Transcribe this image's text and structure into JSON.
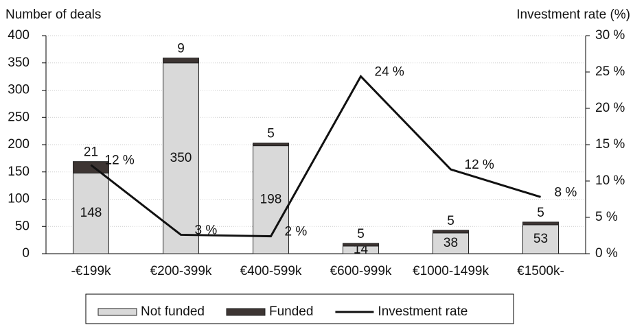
{
  "chart_data": {
    "type": "bar",
    "y_axis_label": "Number of deals",
    "y2_axis_label": "Investment rate (%)",
    "categories": [
      "-€199k",
      "€200-399k",
      "€400-599k",
      "€600-999k",
      "€1000-1499k",
      "€1500k-"
    ],
    "series": [
      {
        "name": "Not funded",
        "color": "#d9d9d9",
        "values": [
          148,
          350,
          198,
          14,
          38,
          53
        ]
      },
      {
        "name": "Funded",
        "color": "#3d3533",
        "values": [
          21,
          9,
          5,
          5,
          5,
          5
        ]
      },
      {
        "name": "Investment rate",
        "color": "#111111",
        "axis": "y2",
        "type": "line",
        "values": [
          12.2,
          2.6,
          2.4,
          24.4,
          11.6,
          7.8
        ],
        "value_labels": [
          "12 %",
          "3 %",
          "2 %",
          "24 %",
          "12 %",
          "8 %"
        ]
      }
    ],
    "ylim": [
      0,
      400
    ],
    "yticks": [
      0,
      50,
      100,
      150,
      200,
      250,
      300,
      350,
      400
    ],
    "y2lim": [
      0,
      30
    ],
    "y2ticks": [
      {
        "value": 0,
        "label": "0 %"
      },
      {
        "value": 5,
        "label": "5 %"
      },
      {
        "value": 10,
        "label": "10 %"
      },
      {
        "value": 15,
        "label": "15 %"
      },
      {
        "value": 20,
        "label": "20 %"
      },
      {
        "value": 25,
        "label": "25 %"
      },
      {
        "value": 30,
        "label": "30 %"
      }
    ],
    "grid": true,
    "legend": "bottom"
  }
}
